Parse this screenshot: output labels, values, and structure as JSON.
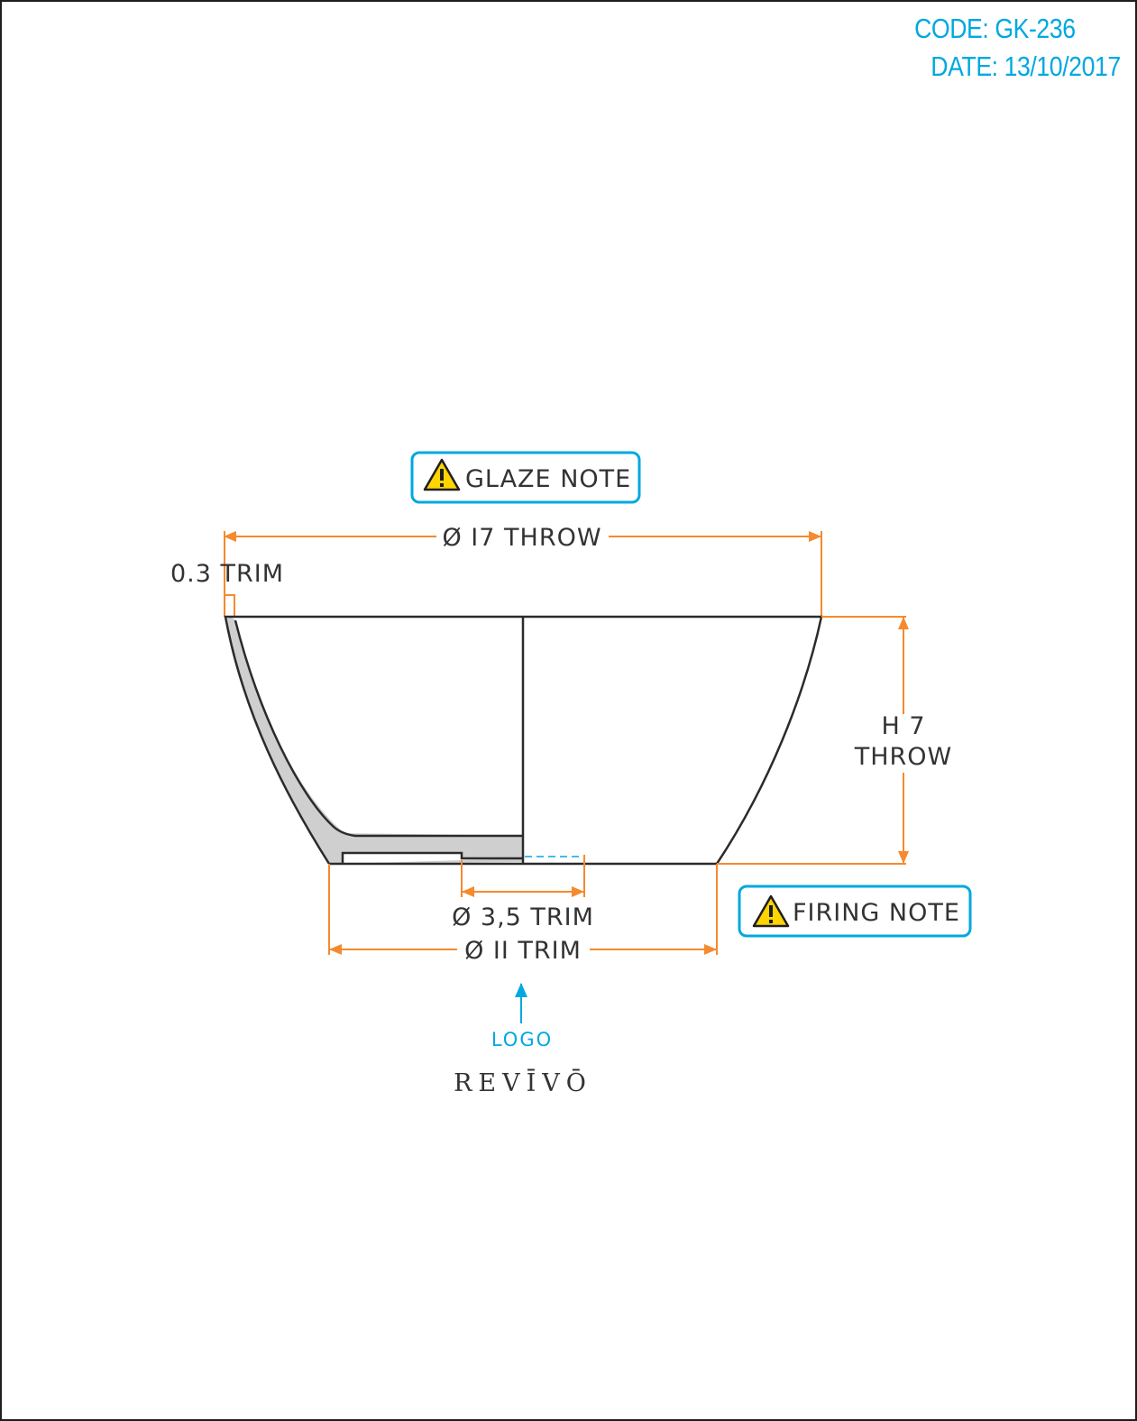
{
  "header": {
    "code": "CODE: GK-236",
    "date": "DATE: 13/10/2017"
  },
  "notes": {
    "glaze": "GLAZE NOTE",
    "firing": "FIRING NOTE"
  },
  "dimensions": {
    "top_diameter": "Ø I7 THROW",
    "rim_trim": "0.3 TRIM",
    "height_line1": "H 7",
    "height_line2": "THROW",
    "foot_inner": "Ø 3,5 TRIM",
    "foot_outer": "Ø II TRIM"
  },
  "logo": {
    "label": "LOGO",
    "brand": "REVĪVŌ"
  },
  "colors": {
    "dimension": "#f58a2e",
    "accent": "#00a8e0",
    "outline": "#2b2b2b",
    "section_fill": "#cfcfcf",
    "warning": "#ffd400"
  },
  "icons": [
    "warning-icon",
    "arrow-up-icon"
  ]
}
